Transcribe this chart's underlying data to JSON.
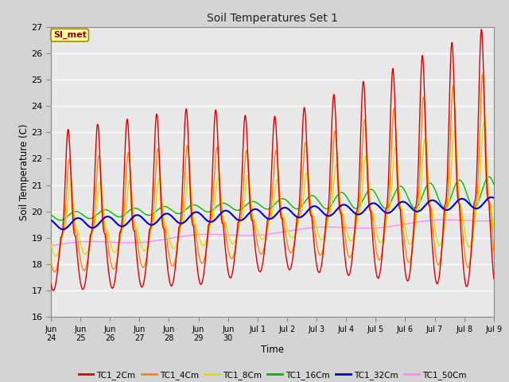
{
  "title": "Soil Temperatures Set 1",
  "xlabel": "Time",
  "ylabel": "Soil Temperature (C)",
  "annotation": "SI_met",
  "ylim": [
    16.0,
    27.0
  ],
  "yticks": [
    16.0,
    17.0,
    18.0,
    19.0,
    20.0,
    21.0,
    22.0,
    23.0,
    24.0,
    25.0,
    26.0,
    27.0
  ],
  "bg_outer": "#d4d4d4",
  "bg_plot": "#e8e8e8",
  "series": {
    "TC1_2Cm": {
      "color": "#dd0000",
      "lw": 1.0
    },
    "TC1_4Cm": {
      "color": "#ff8800",
      "lw": 1.0
    },
    "TC1_8Cm": {
      "color": "#dddd00",
      "lw": 1.0
    },
    "TC1_16Cm": {
      "color": "#00bb00",
      "lw": 1.0
    },
    "TC1_32Cm": {
      "color": "#0000cc",
      "lw": 1.5
    },
    "TC1_50Cm": {
      "color": "#ff88ff",
      "lw": 1.0
    }
  },
  "tick_labels": [
    "Jun\n24",
    "Jun\n25",
    "Jun\n26",
    "Jun\n27",
    "Jun\n28",
    "Jun\n29",
    "Jun\n30",
    "Jul 1",
    "Jul 2",
    "Jul 3",
    "Jul 4",
    "Jul 5",
    "Jul 6",
    "Jul 7",
    "Jul 8",
    "Jul 9"
  ]
}
